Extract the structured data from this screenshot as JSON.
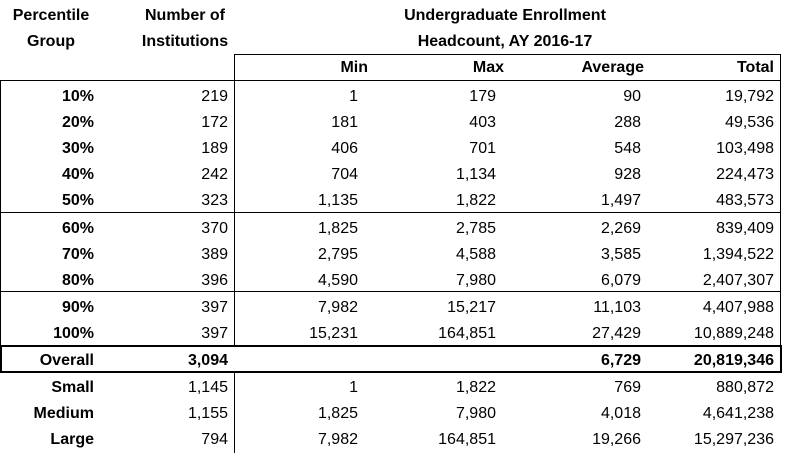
{
  "header": {
    "col_percentile_line1": "Percentile",
    "col_percentile_line2": "Group",
    "col_institutions_line1": "Number of",
    "col_institutions_line2": "Institutions",
    "enrollment_line1": "Undergraduate  Enrollment",
    "enrollment_line2": "Headcount, AY 2016-17",
    "min": "Min",
    "max": "Max",
    "average": "Average",
    "total": "Total"
  },
  "rows": [
    {
      "group": "10%",
      "n": "219",
      "min": "1",
      "max": "179",
      "avg": "90",
      "total": "19,792"
    },
    {
      "group": "20%",
      "n": "172",
      "min": "181",
      "max": "403",
      "avg": "288",
      "total": "49,536"
    },
    {
      "group": "30%",
      "n": "189",
      "min": "406",
      "max": "701",
      "avg": "548",
      "total": "103,498"
    },
    {
      "group": "40%",
      "n": "242",
      "min": "704",
      "max": "1,134",
      "avg": "928",
      "total": "224,473"
    },
    {
      "group": "50%",
      "n": "323",
      "min": "1,135",
      "max": "1,822",
      "avg": "1,497",
      "total": "483,573"
    },
    {
      "group": "60%",
      "n": "370",
      "min": "1,825",
      "max": "2,785",
      "avg": "2,269",
      "total": "839,409"
    },
    {
      "group": "70%",
      "n": "389",
      "min": "2,795",
      "max": "4,588",
      "avg": "3,585",
      "total": "1,394,522"
    },
    {
      "group": "80%",
      "n": "396",
      "min": "4,590",
      "max": "7,980",
      "avg": "6,079",
      "total": "2,407,307"
    },
    {
      "group": "90%",
      "n": "397",
      "min": "7,982",
      "max": "15,217",
      "avg": "11,103",
      "total": "4,407,988"
    },
    {
      "group": "100%",
      "n": "397",
      "min": "15,231",
      "max": "164,851",
      "avg": "27,429",
      "total": "10,889,248"
    },
    {
      "group": "Overall",
      "n": "3,094",
      "min": "",
      "max": "",
      "avg": "6,729",
      "total": "20,819,346"
    },
    {
      "group": "Small",
      "n": "1,145",
      "min": "1",
      "max": "1,822",
      "avg": "769",
      "total": "880,872"
    },
    {
      "group": "Medium",
      "n": "1,155",
      "min": "1,825",
      "max": "7,980",
      "avg": "4,018",
      "total": "4,641,238"
    },
    {
      "group": "Large",
      "n": "794",
      "min": "7,982",
      "max": "164,851",
      "avg": "19,266",
      "total": "15,297,236"
    }
  ]
}
